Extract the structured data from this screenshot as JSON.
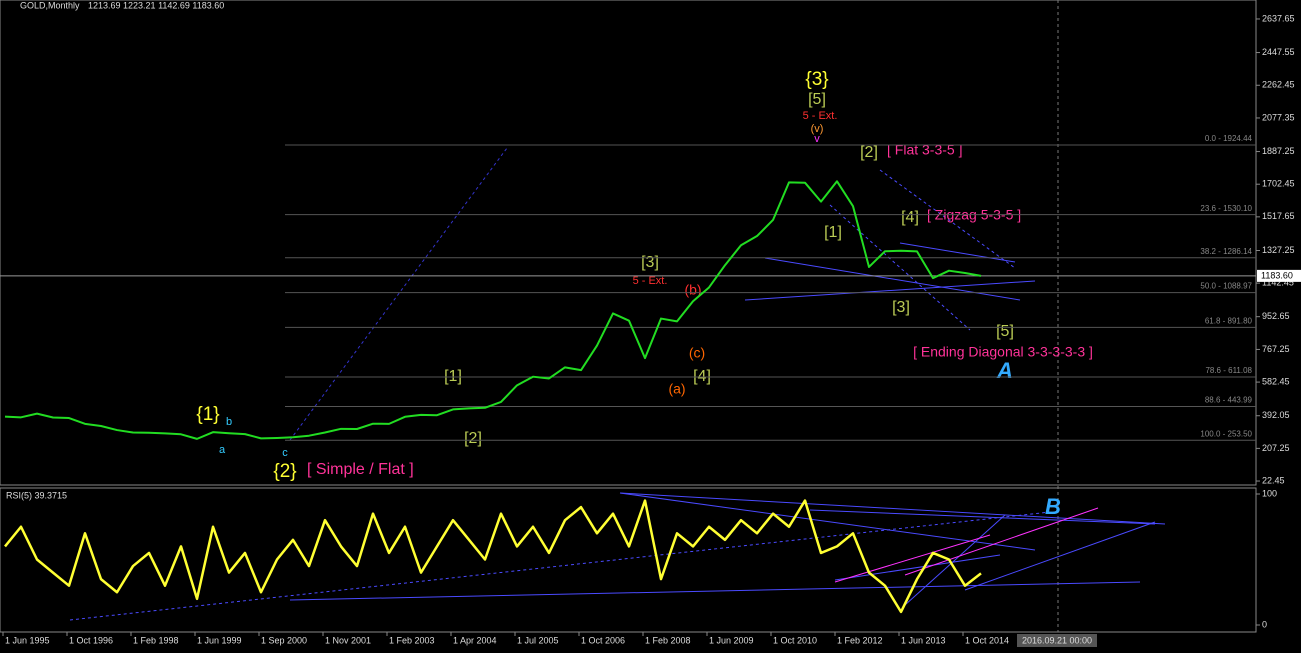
{
  "chart_data": [
    {
      "type": "line",
      "title": "GOLD,Monthly",
      "subtitle": "1213.69 1223.21 1142.69 1183.60",
      "categories": [
        "1 Jun 1995",
        null,
        null,
        null,
        "1 Oct 1996",
        null,
        null,
        null,
        "1 Feb 1998",
        null,
        null,
        null,
        "1 Jun 1999",
        null,
        null,
        null,
        "1 Sep 2000",
        null,
        null,
        null,
        "1 Nov 2001",
        null,
        null,
        null,
        "1 Feb 2003",
        null,
        null,
        null,
        "1 Apr 2004",
        null,
        null,
        null,
        "1 Jul 2005",
        null,
        null,
        null,
        "1 Oct 2006",
        null,
        null,
        null,
        "1 Feb 2008",
        null,
        null,
        null,
        "1 Jun 2009",
        null,
        null,
        null,
        "1 Oct 2010",
        null,
        null,
        null,
        "1 Feb 2012",
        null,
        null,
        null,
        "1 Jun 2013",
        null,
        null,
        null,
        "1 Oct 2014",
        null
      ],
      "values": [
        387,
        383,
        404,
        382,
        379,
        346,
        334,
        311,
        297,
        296,
        292,
        287,
        261,
        299,
        293,
        288,
        264,
        266,
        270,
        279,
        297,
        318,
        317,
        347,
        346,
        386,
        397,
        395,
        428,
        434,
        437,
        470,
        564,
        613,
        603,
        666,
        650,
        789,
        971,
        930,
        718,
        942,
        926,
        1040,
        1118,
        1244,
        1357,
        1409,
        1500,
        1713,
        1711,
        1604,
        1719,
        1578,
        1234,
        1323,
        1326,
        1322,
        1171,
        1213,
        1200,
        1183.6
      ],
      "color": "#22dd22",
      "ylim": [
        0,
        2745
      ],
      "yticks": [
        2637.65,
        2447.55,
        2262.45,
        2077.35,
        1887.25,
        1702.45,
        1517.65,
        1327.25,
        1142.45,
        952.65,
        767.25,
        582.45,
        392.05,
        207.25,
        22.45
      ],
      "last_price": {
        "value": 1183.6,
        "label": "1183.60"
      },
      "fib_levels": [
        {
          "value": 1924.44,
          "label": "0.0 - 1924.44"
        },
        {
          "value": 1530.1,
          "label": "23.6 - 1530.10"
        },
        {
          "value": 1286.14,
          "label": "38.2 - 1286.14"
        },
        {
          "value": 1088.97,
          "label": "50.0 - 1088.97"
        },
        {
          "value": 891.8,
          "label": "61.8 - 891.80"
        },
        {
          "value": 611.08,
          "label": "78.6 - 611.08"
        },
        {
          "value": 443.99,
          "label": "88.6 - 443.99"
        },
        {
          "value": 253.5,
          "label": "100.0 - 253.50"
        }
      ],
      "annotations": [
        "{1}",
        "{2}",
        "{3}",
        "[5]",
        "5 - Ext.",
        "[1]",
        "[2]",
        "[3]",
        "5 - Ext.",
        "[4]",
        "[1]",
        "[2]",
        "[3]",
        "[4]",
        "[5]",
        "[ Simple / Flat ]",
        "[ Flat 3-3-5 ]",
        "[ Zigzag 5-3-5 ]",
        "[ Ending Diagonal 3-3-3-3-3 ]",
        "(a)",
        "(b)",
        "(c)",
        "A",
        "B",
        "a",
        "b",
        "c",
        "(v)",
        "v"
      ],
      "time_marker": "2016.09.21 00:00"
    },
    {
      "type": "line",
      "title": "RSI(5) 39.3715",
      "values": [
        60,
        75,
        50,
        40,
        30,
        70,
        35,
        25,
        45,
        55,
        30,
        60,
        20,
        75,
        40,
        55,
        25,
        50,
        65,
        45,
        80,
        60,
        45,
        85,
        55,
        75,
        40,
        60,
        80,
        65,
        50,
        85,
        60,
        75,
        55,
        80,
        90,
        70,
        85,
        60,
        95,
        35,
        70,
        60,
        75,
        65,
        80,
        70,
        85,
        75,
        95,
        55,
        60,
        70,
        40,
        30,
        10,
        35,
        55,
        50,
        30,
        39.37
      ],
      "color": "#ffff33",
      "ylim": [
        0,
        100
      ],
      "yticks": [
        0,
        100
      ]
    }
  ]
}
